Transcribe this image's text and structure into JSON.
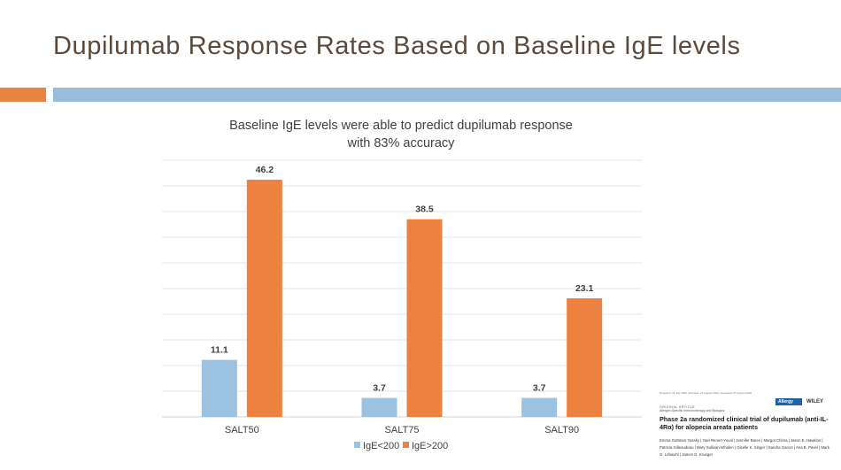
{
  "slide": {
    "title": "Dupilumab Response Rates Based on Baseline IgE levels"
  },
  "chart_data": {
    "type": "bar",
    "title_line1": "Baseline IgE levels were able to predict dupilumab response",
    "title_line2": "with 83% accuracy",
    "categories": [
      "SALT50",
      "SALT75",
      "SALT90"
    ],
    "series": [
      {
        "name": "IgE<200",
        "color": "#9bc2e0",
        "values": [
          11.1,
          3.7,
          3.7
        ],
        "labels": [
          "11.1",
          "3.7",
          "3.7"
        ]
      },
      {
        "name": "IgE>200",
        "color": "#ed8240",
        "values": [
          46.2,
          38.5,
          23.1
        ],
        "labels": [
          "46.2",
          "38.5",
          "23.1"
        ]
      }
    ],
    "ylim": [
      0,
      50
    ],
    "grid": true,
    "legend": "bottom",
    "xlabel": "",
    "ylabel": ""
  },
  "thumbnail": {
    "meta": "Received: 11 July 2022  |  Revised: 21 August 2022  |  Accepted: 27 August 2022",
    "section": "ORIGINAL ARTICLE",
    "subsection": "Allergen-Specific Immunotherapy and Biologics",
    "journal": "Allergy",
    "publisher": "WILEY",
    "heading": "Phase 2a randomized clinical trial of dupilumab (anti-IL-4Rα) for alopecia areata patients",
    "authors": "Emma Guttman-Yassky | Yael Renert-Yuval | Jennifer Bares | Margot Chima | Jason E. Hawkins | Patricia Gilleaudeau | Mary Sullivan-Whalen | Giselle K. Singer | Sandra Garcet | Ana B. Pavel | Mark G. Lebwohl | James G. Krueger"
  }
}
